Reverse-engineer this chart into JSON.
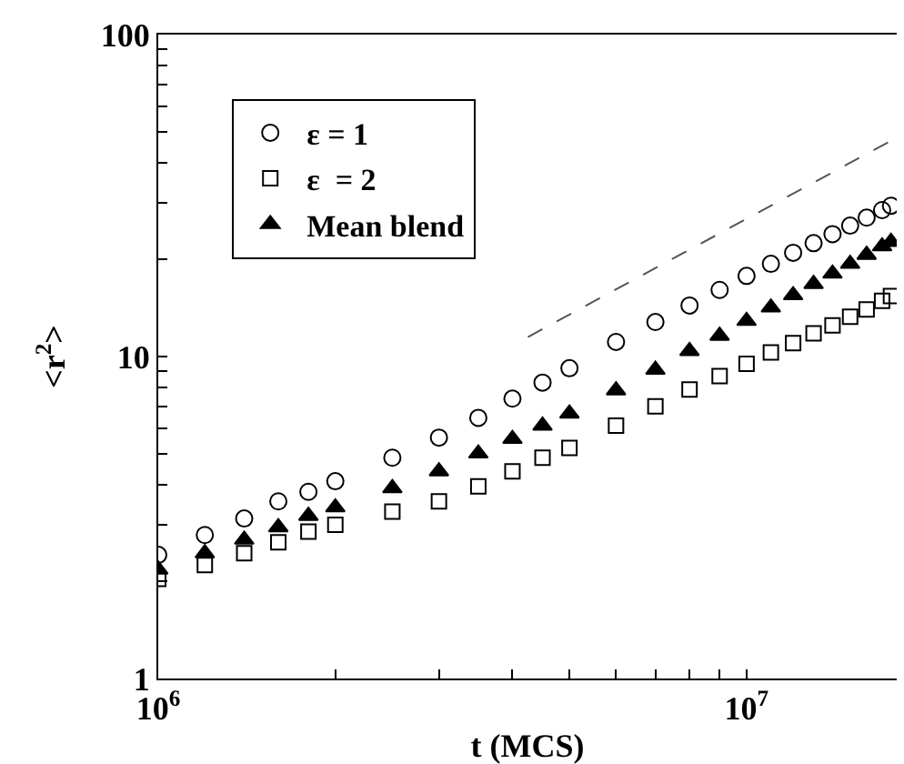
{
  "chart_data": {
    "type": "scatter",
    "xlabel": "t (MCS)",
    "ylabel": "<r$^{2}$>",
    "log": "xy",
    "legend": "top left",
    "xlim": [
      1000000,
      18000000
    ],
    "xticks": [
      {
        "value": 1000000,
        "label": "10$^{6}$"
      },
      {
        "value": 2000000,
        "label": null
      },
      {
        "value": 3000000,
        "label": null
      },
      {
        "value": 4000000,
        "label": null
      },
      {
        "value": 5000000,
        "label": null
      },
      {
        "value": 6000000,
        "label": null
      },
      {
        "value": 7000000,
        "label": null
      },
      {
        "value": 8000000,
        "label": null
      },
      {
        "value": 9000000,
        "label": null
      },
      {
        "value": 10000000,
        "label": "10$^{7}$"
      }
    ],
    "ylim": [
      1,
      100
    ],
    "yticks": [
      1,
      {
        "value": 2,
        "label": null
      },
      {
        "value": 3,
        "label": null
      },
      {
        "value": 4,
        "label": null
      },
      {
        "value": 5,
        "label": null
      },
      {
        "value": 6,
        "label": null
      },
      {
        "value": 7,
        "label": null
      },
      {
        "value": 8,
        "label": null
      },
      {
        "value": 9,
        "label": null
      },
      10,
      {
        "value": 20,
        "label": null
      },
      {
        "value": 30,
        "label": null
      },
      {
        "value": 40,
        "label": null
      },
      {
        "value": 50,
        "label": null
      },
      {
        "value": 60,
        "label": null
      },
      {
        "value": 70,
        "label": null
      },
      {
        "value": 80,
        "label": null
      },
      {
        "value": 90,
        "label": null
      },
      100
    ],
    "x": [
      1000000,
      1200000,
      1400000,
      1600000,
      1800000,
      2000000,
      2500000,
      3000000,
      3500000,
      4000000,
      4500000,
      5000000,
      6000000,
      7000000,
      8000000,
      9000000,
      10000000,
      11000000,
      12000000,
      13000000,
      14000000,
      15000000,
      16000000,
      17000000,
      17600000
    ],
    "series": [
      {
        "name": "ε = 1",
        "color": "#000000",
        "marker": "circle",
        "values": [
          2.42,
          2.79,
          3.14,
          3.55,
          3.8,
          4.1,
          4.85,
          5.6,
          6.45,
          7.4,
          8.3,
          9.2,
          11.1,
          12.8,
          14.4,
          16.1,
          17.8,
          19.4,
          21.0,
          22.5,
          24.0,
          25.5,
          27.0,
          28.5,
          29.4
        ]
      },
      {
        "name": "ε  = 2",
        "color": "#000000",
        "marker": "square",
        "values": [
          2.04,
          2.25,
          2.45,
          2.65,
          2.86,
          3.0,
          3.3,
          3.55,
          3.95,
          4.4,
          4.85,
          5.2,
          6.1,
          7.0,
          7.9,
          8.7,
          9.5,
          10.3,
          11.0,
          11.8,
          12.5,
          13.3,
          14.0,
          14.9,
          15.4
        ]
      },
      {
        "name": "Mean blend",
        "color": "#000000",
        "marker": "triangle",
        "values": [
          2.18,
          2.45,
          2.7,
          2.95,
          3.2,
          3.4,
          3.9,
          4.4,
          5.0,
          5.55,
          6.1,
          6.65,
          7.85,
          9.1,
          10.4,
          11.6,
          12.9,
          14.2,
          15.5,
          16.8,
          18.1,
          19.4,
          20.7,
          22.0,
          22.7
        ]
      },
      {
        "type": "line",
        "color": "#555555",
        "marker": "none",
        "line_style": "dashed",
        "x": [
          4250000,
          17600000
        ],
        "values": [
          11.5,
          46.8
        ]
      }
    ]
  }
}
